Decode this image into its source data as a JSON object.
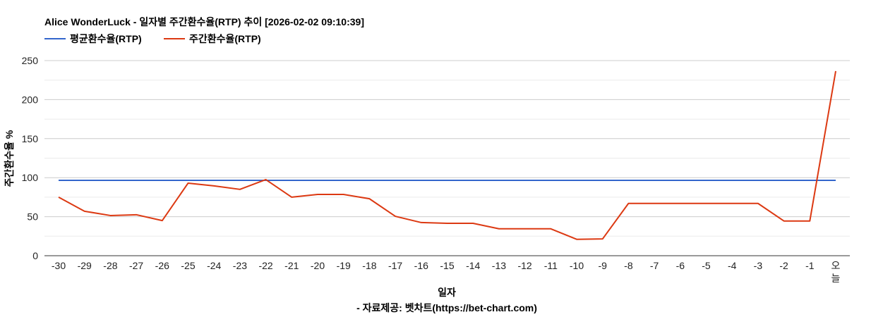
{
  "chart_data": {
    "type": "line",
    "title": "Alice WonderLuck - 일자별 주간환수율(RTP) 추이 [2026-02-02 09:10:39]",
    "xlabel": "일자",
    "ylabel": "주간환수율 %",
    "footer": "- 자료제공: 벳차트(https://bet-chart.com)",
    "ylim": [
      0,
      250
    ],
    "yticks": [
      0,
      50,
      100,
      150,
      200,
      250
    ],
    "grid": true,
    "legend_position": "top-left",
    "categories": [
      "-30",
      "-29",
      "-28",
      "-27",
      "-26",
      "-25",
      "-24",
      "-23",
      "-22",
      "-21",
      "-20",
      "-19",
      "-18",
      "-17",
      "-16",
      "-15",
      "-14",
      "-13",
      "-12",
      "-11",
      "-10",
      "-9",
      "-8",
      "-7",
      "-6",
      "-5",
      "-4",
      "-3",
      "-2",
      "-1",
      "오늘"
    ],
    "series": [
      {
        "name": "평균환수율(RTP)",
        "color": "#3366cc",
        "values": [
          96.6,
          96.6,
          96.6,
          96.6,
          96.6,
          96.6,
          96.6,
          96.6,
          96.6,
          96.6,
          96.6,
          96.6,
          96.6,
          96.6,
          96.6,
          96.6,
          96.6,
          96.6,
          96.6,
          96.6,
          96.6,
          96.6,
          96.6,
          96.6,
          96.6,
          96.6,
          96.6,
          96.6,
          96.6,
          96.6,
          96.6
        ]
      },
      {
        "name": "주간환수율(RTP)",
        "color": "#dc3912",
        "values": [
          75,
          57,
          51.5,
          52.5,
          45,
          93,
          89.5,
          85,
          97.5,
          75,
          78.5,
          78.5,
          73,
          50.5,
          42.5,
          41.5,
          41.5,
          34.5,
          34.5,
          34.5,
          21,
          21.5,
          67,
          67,
          67,
          67,
          67,
          67,
          44.5,
          44.5,
          236.5
        ]
      }
    ]
  }
}
